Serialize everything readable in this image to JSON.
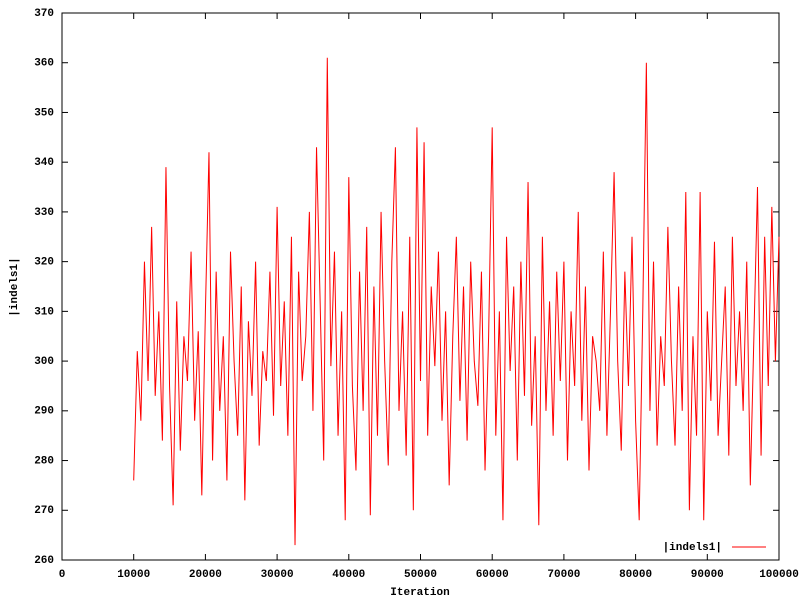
{
  "chart_data": {
    "type": "line",
    "x_label": "Iteration",
    "y_label": "|indels1|",
    "x": [
      10000,
      10500,
      11000,
      11500,
      12000,
      12500,
      13000,
      13500,
      14000,
      14500,
      15000,
      15500,
      16000,
      16500,
      17000,
      17500,
      18000,
      18500,
      19000,
      19500,
      20000,
      20500,
      21000,
      21500,
      22000,
      22500,
      23000,
      23500,
      24000,
      24500,
      25000,
      25500,
      26000,
      26500,
      27000,
      27500,
      28000,
      28500,
      29000,
      29500,
      30000,
      30500,
      31000,
      31500,
      32000,
      32500,
      33000,
      33500,
      34000,
      34500,
      35000,
      35500,
      36000,
      36500,
      37000,
      37500,
      38000,
      38500,
      39000,
      39500,
      40000,
      40500,
      41000,
      41500,
      42000,
      42500,
      43000,
      43500,
      44000,
      44500,
      45000,
      45500,
      46000,
      46500,
      47000,
      47500,
      48000,
      48500,
      49000,
      49500,
      50000,
      50500,
      51000,
      51500,
      52000,
      52500,
      53000,
      53500,
      54000,
      54500,
      55000,
      55500,
      56000,
      56500,
      57000,
      57500,
      58000,
      58500,
      59000,
      59500,
      60000,
      60500,
      61000,
      61500,
      62000,
      62500,
      63000,
      63500,
      64000,
      64500,
      65000,
      65500,
      66000,
      66500,
      67000,
      67500,
      68000,
      68500,
      69000,
      69500,
      70000,
      70500,
      71000,
      71500,
      72000,
      72500,
      73000,
      73500,
      74000,
      74500,
      75000,
      75500,
      76000,
      76500,
      77000,
      77500,
      78000,
      78500,
      79000,
      79500,
      80000,
      80500,
      81000,
      81500,
      82000,
      82500,
      83000,
      83500,
      84000,
      84500,
      85000,
      85500,
      86000,
      86500,
      87000,
      87500,
      88000,
      88500,
      89000,
      89500,
      90000,
      90500,
      91000,
      91500,
      92000,
      92500,
      93000,
      93500,
      94000,
      94500,
      95000,
      95500,
      96000,
      96500,
      97000,
      97500,
      98000,
      98500,
      99000,
      99500,
      100000
    ],
    "series": [
      {
        "name": "|indels1|",
        "color": "#ff0000",
        "values": [
          276,
          302,
          288,
          320,
          296,
          327,
          293,
          310,
          284,
          339,
          295,
          271,
          312,
          282,
          305,
          296,
          322,
          288,
          306,
          273,
          310,
          342,
          280,
          318,
          290,
          305,
          276,
          322,
          300,
          285,
          315,
          272,
          308,
          293,
          320,
          283,
          302,
          296,
          318,
          289,
          331,
          295,
          312,
          285,
          325,
          263,
          318,
          296,
          305,
          330,
          290,
          343,
          312,
          280,
          361,
          299,
          322,
          285,
          310,
          268,
          337,
          295,
          278,
          318,
          290,
          327,
          269,
          315,
          285,
          330,
          300,
          279,
          320,
          343,
          290,
          310,
          281,
          325,
          270,
          347,
          296,
          344,
          285,
          315,
          299,
          322,
          288,
          310,
          275,
          305,
          325,
          292,
          315,
          284,
          320,
          300,
          291,
          318,
          278,
          305,
          347,
          285,
          310,
          268,
          325,
          298,
          315,
          280,
          320,
          293,
          336,
          287,
          305,
          267,
          325,
          290,
          312,
          285,
          318,
          296,
          320,
          280,
          310,
          295,
          330,
          288,
          315,
          278,
          305,
          300,
          290,
          322,
          285,
          310,
          338,
          300,
          282,
          318,
          295,
          325,
          288,
          268,
          310,
          360,
          290,
          320,
          283,
          305,
          295,
          327,
          300,
          283,
          315,
          290,
          334,
          270,
          305,
          285,
          334,
          268,
          310,
          292,
          324,
          285,
          300,
          315,
          281,
          325,
          295,
          310,
          290,
          320,
          275,
          305,
          335,
          281,
          325,
          295,
          331,
          300,
          325
        ]
      }
    ],
    "xlim": [
      0,
      100000
    ],
    "xticks": [
      0,
      10000,
      20000,
      30000,
      40000,
      50000,
      60000,
      70000,
      80000,
      90000,
      100000
    ],
    "ylim": [
      260,
      370
    ],
    "yticks": [
      260,
      270,
      280,
      290,
      300,
      310,
      320,
      330,
      340,
      350,
      360,
      370
    ],
    "legend": "bottom-right"
  }
}
